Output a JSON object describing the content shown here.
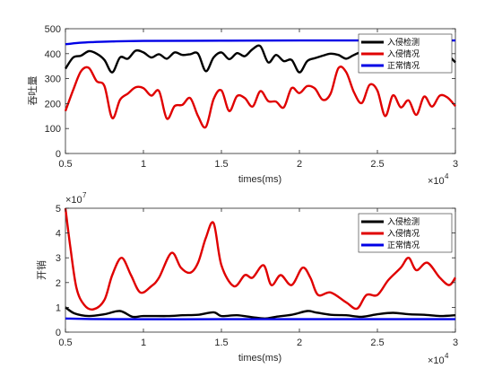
{
  "chart_data": [
    {
      "type": "line",
      "xlabel": "times(ms)",
      "ylabel": "吞吐量",
      "xlim": [
        5000,
        30000
      ],
      "ylim": [
        0,
        500
      ],
      "xticks": [
        5000,
        10000,
        15000,
        20000,
        25000,
        30000
      ],
      "xtick_labels": [
        "0.5",
        "1",
        "1.5",
        "2",
        "2.5",
        "3"
      ],
      "yticks": [
        0,
        100,
        200,
        300,
        400,
        500
      ],
      "ytick_labels": [
        "0",
        "100",
        "200",
        "300",
        "400",
        "500"
      ],
      "x_multiplier_label": "×10",
      "x_multiplier_exp": "4",
      "grid": false,
      "legend_position": "top-right",
      "series": [
        {
          "name": "入侵检测",
          "color": "#000000",
          "points": [
            [
              5000,
              340
            ],
            [
              5500,
              385
            ],
            [
              6000,
              392
            ],
            [
              6500,
              410
            ],
            [
              7000,
              400
            ],
            [
              7500,
              375
            ],
            [
              8000,
              325
            ],
            [
              8500,
              385
            ],
            [
              9000,
              380
            ],
            [
              9500,
              412
            ],
            [
              10000,
              405
            ],
            [
              10500,
              385
            ],
            [
              11000,
              398
            ],
            [
              11500,
              380
            ],
            [
              12000,
              405
            ],
            [
              12500,
              395
            ],
            [
              13000,
              398
            ],
            [
              13500,
              400
            ],
            [
              14000,
              330
            ],
            [
              14500,
              385
            ],
            [
              15000,
              405
            ],
            [
              15500,
              378
            ],
            [
              16000,
              402
            ],
            [
              16500,
              390
            ],
            [
              17000,
              418
            ],
            [
              17500,
              430
            ],
            [
              18000,
              365
            ],
            [
              18500,
              395
            ],
            [
              19000,
              370
            ],
            [
              19500,
              375
            ],
            [
              20000,
              325
            ],
            [
              20500,
              370
            ],
            [
              21000,
              382
            ],
            [
              21500,
              392
            ],
            [
              22000,
              400
            ],
            [
              22500,
              395
            ],
            [
              23000,
              380
            ],
            [
              23500,
              395
            ],
            [
              24000,
              402
            ],
            [
              24500,
              358
            ],
            [
              25000,
              388
            ],
            [
              25500,
              400
            ],
            [
              26000,
              405
            ],
            [
              26500,
              398
            ],
            [
              27000,
              400
            ],
            [
              27500,
              360
            ],
            [
              28000,
              395
            ],
            [
              28500,
              383
            ],
            [
              29000,
              407
            ],
            [
              29500,
              395
            ],
            [
              30000,
              365
            ]
          ]
        },
        {
          "name": "入侵情况",
          "color": "#e00000",
          "points": [
            [
              5000,
              170
            ],
            [
              5500,
              255
            ],
            [
              6000,
              330
            ],
            [
              6500,
              343
            ],
            [
              7000,
              290
            ],
            [
              7500,
              270
            ],
            [
              8000,
              142
            ],
            [
              8500,
              215
            ],
            [
              9000,
              240
            ],
            [
              9500,
              265
            ],
            [
              10000,
              262
            ],
            [
              10500,
              232
            ],
            [
              11000,
              250
            ],
            [
              11500,
              140
            ],
            [
              12000,
              190
            ],
            [
              12500,
              195
            ],
            [
              13000,
              222
            ],
            [
              13500,
              150
            ],
            [
              14000,
              106
            ],
            [
              14500,
              218
            ],
            [
              15000,
              253
            ],
            [
              15500,
              170
            ],
            [
              16000,
              230
            ],
            [
              16500,
              222
            ],
            [
              17000,
              188
            ],
            [
              17500,
              250
            ],
            [
              18000,
              210
            ],
            [
              18500,
              208
            ],
            [
              19000,
              185
            ],
            [
              19500,
              262
            ],
            [
              20000,
              242
            ],
            [
              20500,
              270
            ],
            [
              21000,
              260
            ],
            [
              21500,
              215
            ],
            [
              22000,
              240
            ],
            [
              22500,
              342
            ],
            [
              23000,
              326
            ],
            [
              23500,
              245
            ],
            [
              24000,
              202
            ],
            [
              24500,
              275
            ],
            [
              25000,
              252
            ],
            [
              25500,
              150
            ],
            [
              26000,
              233
            ],
            [
              26500,
              185
            ],
            [
              27000,
              213
            ],
            [
              27500,
              155
            ],
            [
              28000,
              228
            ],
            [
              28500,
              188
            ],
            [
              29000,
              232
            ],
            [
              29500,
              224
            ],
            [
              30000,
              190
            ]
          ]
        },
        {
          "name": "正常情况",
          "color": "#0000e6",
          "points": [
            [
              5000,
              438
            ],
            [
              6000,
              444
            ],
            [
              7000,
              447
            ],
            [
              8000,
              449
            ],
            [
              10000,
              451
            ],
            [
              15000,
              452
            ],
            [
              20000,
              453
            ],
            [
              25000,
              453
            ],
            [
              30000,
              453
            ]
          ]
        }
      ]
    },
    {
      "type": "line",
      "xlabel": "times(ms)",
      "ylabel": "开销",
      "xlim": [
        5000,
        30000
      ],
      "ylim": [
        0,
        5
      ],
      "xticks": [
        5000,
        10000,
        15000,
        20000,
        25000,
        30000
      ],
      "xtick_labels": [
        "0.5",
        "1",
        "1.5",
        "2",
        "2.5",
        "3"
      ],
      "yticks": [
        0,
        1,
        2,
        3,
        4,
        5
      ],
      "ytick_labels": [
        "0",
        "1",
        "2",
        "3",
        "4",
        "5"
      ],
      "y_multiplier_label": "×10",
      "y_multiplier_exp": "7",
      "x_multiplier_label": "×10",
      "x_multiplier_exp": "4",
      "grid": false,
      "legend_position": "top-right",
      "series": [
        {
          "name": "入侵检测",
          "color": "#000000",
          "points": [
            [
              5000,
              1.0
            ],
            [
              5600,
              0.75
            ],
            [
              6500,
              0.65
            ],
            [
              7500,
              0.72
            ],
            [
              8500,
              0.85
            ],
            [
              9300,
              0.62
            ],
            [
              10000,
              0.65
            ],
            [
              11500,
              0.65
            ],
            [
              12500,
              0.68
            ],
            [
              13500,
              0.7
            ],
            [
              14500,
              0.8
            ],
            [
              15000,
              0.65
            ],
            [
              16000,
              0.68
            ],
            [
              17000,
              0.6
            ],
            [
              17800,
              0.55
            ],
            [
              18500,
              0.62
            ],
            [
              19500,
              0.7
            ],
            [
              20500,
              0.85
            ],
            [
              21000,
              0.8
            ],
            [
              22000,
              0.7
            ],
            [
              23000,
              0.68
            ],
            [
              24000,
              0.62
            ],
            [
              25000,
              0.72
            ],
            [
              26000,
              0.78
            ],
            [
              27000,
              0.72
            ],
            [
              28000,
              0.7
            ],
            [
              29000,
              0.65
            ],
            [
              30000,
              0.68
            ]
          ]
        },
        {
          "name": "入侵情况",
          "color": "#e00000",
          "points": [
            [
              5000,
              5.0
            ],
            [
              5300,
              3.5
            ],
            [
              5700,
              1.8
            ],
            [
              6200,
              1.1
            ],
            [
              6800,
              0.92
            ],
            [
              7500,
              1.3
            ],
            [
              8000,
              2.3
            ],
            [
              8600,
              3.0
            ],
            [
              9200,
              2.3
            ],
            [
              9800,
              1.6
            ],
            [
              10500,
              1.85
            ],
            [
              11000,
              2.2
            ],
            [
              11800,
              3.2
            ],
            [
              12400,
              2.6
            ],
            [
              13000,
              2.4
            ],
            [
              13500,
              2.8
            ],
            [
              14000,
              3.8
            ],
            [
              14500,
              4.4
            ],
            [
              15000,
              2.7
            ],
            [
              15800,
              1.85
            ],
            [
              16500,
              2.3
            ],
            [
              17000,
              2.2
            ],
            [
              17700,
              2.7
            ],
            [
              18200,
              1.9
            ],
            [
              18800,
              2.3
            ],
            [
              19500,
              1.9
            ],
            [
              20200,
              2.6
            ],
            [
              20700,
              2.2
            ],
            [
              21200,
              1.5
            ],
            [
              22000,
              1.6
            ],
            [
              23000,
              1.2
            ],
            [
              23700,
              0.95
            ],
            [
              24300,
              1.5
            ],
            [
              25000,
              1.5
            ],
            [
              25700,
              2.1
            ],
            [
              26500,
              2.6
            ],
            [
              27000,
              3.0
            ],
            [
              27500,
              2.5
            ],
            [
              28200,
              2.8
            ],
            [
              29000,
              2.2
            ],
            [
              29600,
              1.9
            ],
            [
              30000,
              2.2
            ]
          ]
        },
        {
          "name": "正常情况",
          "color": "#0000e6",
          "points": [
            [
              5000,
              0.55
            ],
            [
              8000,
              0.52
            ],
            [
              15000,
              0.52
            ],
            [
              22000,
              0.52
            ],
            [
              30000,
              0.52
            ]
          ]
        }
      ]
    }
  ]
}
